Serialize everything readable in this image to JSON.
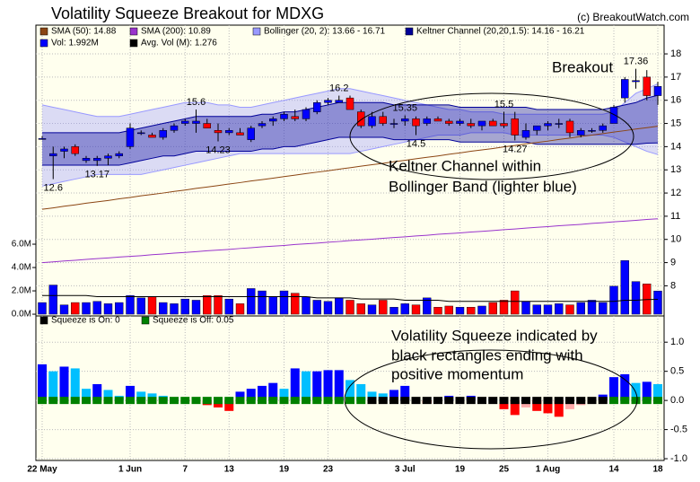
{
  "chart_data": [
    {
      "type": "candlestick",
      "title": "Volatility Squeeze Breakout for MDXG",
      "credit": "(c) BreakoutWatch.com",
      "categories": [
        "22 May",
        null,
        null,
        null,
        null,
        null,
        null,
        null,
        "1 Jun",
        null,
        null,
        null,
        null,
        "7",
        null,
        null,
        null,
        "13",
        null,
        null,
        null,
        null,
        "19",
        null,
        null,
        null,
        "23",
        null,
        null,
        null,
        null,
        null,
        null,
        "3 Jul",
        null,
        null,
        null,
        null,
        "19",
        null,
        null,
        null,
        "25",
        null,
        null,
        null,
        "1 Aug",
        null,
        null,
        null,
        null,
        null,
        "14",
        null,
        null,
        null,
        "18"
      ],
      "open": [
        14.35,
        13.6,
        13.8,
        14.0,
        13.4,
        13.4,
        13.5,
        13.6,
        14.0,
        14.6,
        14.5,
        14.4,
        14.7,
        15.0,
        15.0,
        15.0,
        14.7,
        14.6,
        14.6,
        14.3,
        14.9,
        15.1,
        15.2,
        15.3,
        15.2,
        15.5,
        15.9,
        15.9,
        16.1,
        15.5,
        14.9,
        15.3,
        15.0,
        15.1,
        15.2,
        15.0,
        15.2,
        15.1,
        15.0,
        15.0,
        14.9,
        15.1,
        15.0,
        15.2,
        14.4,
        14.7,
        14.9,
        15.0,
        15.1,
        14.5,
        14.7,
        14.7,
        15.0,
        16.1,
        16.8,
        17.0,
        16.2
      ],
      "high": [
        14.45,
        14.0,
        14.0,
        14.1,
        13.6,
        13.6,
        13.7,
        13.8,
        15.0,
        14.7,
        14.6,
        14.8,
        15.0,
        15.2,
        15.6,
        15.2,
        15.0,
        14.8,
        14.8,
        14.9,
        15.1,
        15.3,
        15.5,
        15.6,
        15.7,
        16.0,
        16.1,
        16.2,
        16.2,
        15.6,
        15.5,
        15.5,
        15.2,
        15.35,
        15.3,
        15.3,
        15.3,
        15.2,
        15.2,
        15.2,
        15.1,
        15.2,
        15.5,
        15.5,
        15.0,
        14.9,
        15.1,
        15.2,
        15.2,
        14.8,
        14.8,
        15.0,
        15.8,
        17.0,
        17.36,
        17.3,
        16.8
      ],
      "low": [
        14.3,
        12.6,
        13.5,
        13.6,
        13.3,
        13.17,
        13.2,
        13.5,
        13.9,
        14.5,
        14.4,
        14.3,
        14.6,
        14.9,
        14.6,
        14.8,
        14.23,
        14.5,
        14.5,
        14.2,
        14.8,
        14.9,
        15.1,
        15.1,
        15.1,
        15.4,
        15.8,
        15.9,
        15.6,
        14.8,
        14.8,
        14.9,
        14.8,
        14.9,
        14.5,
        14.9,
        15.1,
        14.9,
        14.9,
        14.8,
        14.7,
        14.9,
        14.8,
        14.27,
        14.3,
        14.5,
        14.7,
        14.8,
        14.4,
        14.4,
        14.6,
        14.6,
        15.0,
        15.9,
        16.5,
        16.0,
        15.8
      ],
      "close": [
        14.35,
        13.7,
        13.9,
        13.7,
        13.5,
        13.5,
        13.6,
        13.7,
        14.8,
        14.6,
        14.4,
        14.7,
        14.9,
        15.1,
        15.1,
        14.8,
        14.6,
        14.7,
        14.5,
        14.8,
        15.0,
        15.2,
        15.4,
        15.2,
        15.6,
        15.9,
        16.0,
        16.0,
        15.6,
        14.9,
        15.3,
        15.0,
        15.0,
        15.2,
        14.9,
        15.2,
        15.1,
        15.0,
        15.1,
        14.9,
        15.1,
        14.9,
        14.9,
        14.5,
        14.7,
        14.9,
        15.0,
        15.0,
        14.6,
        14.7,
        14.7,
        14.9,
        15.7,
        16.9,
        16.85,
        16.2,
        16.6
      ],
      "high_labels": [
        null,
        null,
        null,
        null,
        null,
        null,
        null,
        null,
        null,
        null,
        null,
        null,
        null,
        null,
        "15.6",
        null,
        null,
        null,
        null,
        null,
        null,
        null,
        null,
        null,
        null,
        null,
        null,
        "16.2",
        null,
        null,
        null,
        null,
        null,
        "15.35",
        null,
        null,
        null,
        null,
        null,
        null,
        null,
        null,
        "15.5",
        null,
        null,
        null,
        null,
        null,
        null,
        null,
        null,
        null,
        null,
        null,
        "17.36",
        null,
        null
      ],
      "low_labels": [
        null,
        "12.6",
        null,
        null,
        null,
        "13.17",
        null,
        null,
        null,
        null,
        null,
        null,
        null,
        null,
        null,
        null,
        "14.23",
        null,
        null,
        null,
        null,
        null,
        null,
        null,
        null,
        null,
        null,
        null,
        null,
        null,
        null,
        null,
        null,
        null,
        "14.5",
        null,
        null,
        null,
        null,
        null,
        null,
        null,
        null,
        "14.27",
        null,
        null,
        null,
        null,
        null,
        null,
        null,
        null,
        null,
        null,
        null,
        null,
        null
      ],
      "up_color": "#0000ff",
      "down_color": "#ff0000",
      "ylim": [
        6.7,
        19.24
      ],
      "yticks": [
        8,
        9,
        10,
        11,
        12,
        13,
        14,
        15,
        16,
        17,
        18
      ],
      "y2lim": [
        -0.15,
        24.77
      ],
      "y2ticks": [
        {
          "value": 0,
          "label": "0.0M"
        },
        {
          "value": 2,
          "label": "2.0M"
        },
        {
          "value": 4,
          "label": "4.0M"
        },
        {
          "value": 6,
          "label": "6.0M"
        }
      ],
      "grid": true,
      "series": [
        {
          "name": "SMA (50): 14.88",
          "color": "#8b4513",
          "values": [
            11.3,
            11.36,
            11.43,
            11.49,
            11.56,
            11.62,
            11.68,
            11.75,
            11.81,
            11.88,
            11.94,
            12.0,
            12.07,
            12.13,
            12.2,
            12.26,
            12.32,
            12.39,
            12.45,
            12.52,
            12.58,
            12.64,
            12.71,
            12.77,
            12.84,
            12.9,
            12.96,
            13.03,
            13.09,
            13.16,
            13.22,
            13.28,
            13.35,
            13.41,
            13.48,
            13.54,
            13.6,
            13.67,
            13.73,
            13.8,
            13.86,
            13.92,
            13.99,
            14.05,
            14.12,
            14.18,
            14.24,
            14.31,
            14.37,
            14.44,
            14.5,
            14.56,
            14.63,
            14.69,
            14.76,
            14.82,
            14.88
          ]
        },
        {
          "name": "SMA (200): 10.89",
          "color": "#9933cc",
          "values": [
            9.0,
            9.03,
            9.07,
            9.1,
            9.14,
            9.17,
            9.2,
            9.24,
            9.27,
            9.3,
            9.34,
            9.37,
            9.41,
            9.44,
            9.47,
            9.51,
            9.54,
            9.57,
            9.61,
            9.64,
            9.68,
            9.71,
            9.74,
            9.78,
            9.81,
            9.84,
            9.88,
            9.91,
            9.95,
            9.98,
            10.01,
            10.05,
            10.08,
            10.11,
            10.15,
            10.18,
            10.22,
            10.25,
            10.28,
            10.32,
            10.35,
            10.38,
            10.42,
            10.45,
            10.49,
            10.52,
            10.55,
            10.59,
            10.62,
            10.65,
            10.69,
            10.72,
            10.76,
            10.79,
            10.82,
            10.86,
            10.89
          ]
        },
        {
          "name": "Bollinger (20, 2): 13.66 - 16.71",
          "color": "#9999ff",
          "upper": [
            15.8,
            15.7,
            15.6,
            15.5,
            15.4,
            15.3,
            15.3,
            15.3,
            15.4,
            15.5,
            15.6,
            15.7,
            15.8,
            15.9,
            15.9,
            15.9,
            15.8,
            15.8,
            15.7,
            15.7,
            15.8,
            15.9,
            16.0,
            16.1,
            16.2,
            16.3,
            16.4,
            16.5,
            16.5,
            16.4,
            16.3,
            16.2,
            16.1,
            16.0,
            15.9,
            15.8,
            15.7,
            15.6,
            15.6,
            15.5,
            15.5,
            15.5,
            15.4,
            15.4,
            15.4,
            15.4,
            15.4,
            15.4,
            15.4,
            15.4,
            15.4,
            15.4,
            15.5,
            15.9,
            16.3,
            16.5,
            16.71
          ],
          "lower": [
            12.3,
            12.4,
            12.5,
            12.6,
            12.7,
            12.8,
            12.8,
            12.8,
            12.8,
            12.8,
            12.9,
            13.0,
            13.1,
            13.2,
            13.3,
            13.4,
            13.5,
            13.6,
            13.7,
            13.7,
            13.7,
            13.7,
            13.7,
            13.7,
            13.7,
            13.7,
            13.7,
            13.7,
            13.7,
            13.8,
            13.9,
            14.0,
            14.1,
            14.2,
            14.3,
            14.4,
            14.5,
            14.5,
            14.5,
            14.6,
            14.6,
            14.6,
            14.6,
            14.5,
            14.5,
            14.5,
            14.5,
            14.5,
            14.5,
            14.5,
            14.5,
            14.5,
            14.4,
            14.2,
            14.0,
            13.8,
            13.66
          ]
        },
        {
          "name": "Keltner Channel (20,20,1.5): 14.16 - 16.21",
          "color": "#000099",
          "upper": [
            14.6,
            14.6,
            14.6,
            14.6,
            14.6,
            14.6,
            14.6,
            14.6,
            14.7,
            14.8,
            14.9,
            15.0,
            15.1,
            15.2,
            15.3,
            15.3,
            15.3,
            15.3,
            15.3,
            15.3,
            15.4,
            15.4,
            15.5,
            15.5,
            15.6,
            15.7,
            15.8,
            15.9,
            15.9,
            15.9,
            15.9,
            15.9,
            15.8,
            15.8,
            15.8,
            15.8,
            15.8,
            15.8,
            15.7,
            15.7,
            15.7,
            15.7,
            15.7,
            15.7,
            15.7,
            15.6,
            15.6,
            15.6,
            15.6,
            15.6,
            15.6,
            15.6,
            15.7,
            15.8,
            15.9,
            16.1,
            16.21
          ],
          "lower": [
            13.2,
            13.2,
            13.2,
            13.2,
            13.2,
            13.2,
            13.2,
            13.2,
            13.3,
            13.4,
            13.5,
            13.6,
            13.6,
            13.7,
            13.8,
            13.8,
            13.8,
            13.8,
            13.8,
            13.8,
            13.9,
            13.9,
            14.0,
            14.0,
            14.1,
            14.2,
            14.3,
            14.4,
            14.4,
            14.4,
            14.4,
            14.4,
            14.3,
            14.3,
            14.3,
            14.3,
            14.3,
            14.3,
            14.2,
            14.2,
            14.2,
            14.2,
            14.2,
            14.2,
            14.2,
            14.1,
            14.1,
            14.1,
            14.1,
            14.1,
            14.1,
            14.1,
            14.1,
            14.1,
            14.1,
            14.15,
            14.16
          ]
        },
        {
          "name": "Vol: 1.992M",
          "color": "#0000ff",
          "axis": "y2",
          "type": "bar",
          "values": [
            1.0,
            2.5,
            0.8,
            1.0,
            1.0,
            1.1,
            0.9,
            1.0,
            1.6,
            1.4,
            1.5,
            1.0,
            0.9,
            1.3,
            1.2,
            1.6,
            1.6,
            1.3,
            0.9,
            2.2,
            2.0,
            1.5,
            2.0,
            1.8,
            1.5,
            1.2,
            1.1,
            1.4,
            1.2,
            0.9,
            0.8,
            1.2,
            0.6,
            0.9,
            0.8,
            1.4,
            0.6,
            0.7,
            0.6,
            0.6,
            0.7,
            1.0,
            1.2,
            2.0,
            1.1,
            0.8,
            0.8,
            0.9,
            0.8,
            1.0,
            1.2,
            1.0,
            2.4,
            4.6,
            2.8,
            2.6,
            1.992
          ]
        },
        {
          "name": "Avg. Vol (M): 1.276",
          "color": "#000000",
          "axis": "y2",
          "values": [
            1.6,
            1.6,
            1.6,
            1.6,
            1.6,
            1.5,
            1.5,
            1.5,
            1.5,
            1.5,
            1.5,
            1.5,
            1.5,
            1.5,
            1.5,
            1.5,
            1.5,
            1.5,
            1.5,
            1.5,
            1.5,
            1.5,
            1.5,
            1.5,
            1.5,
            1.4,
            1.4,
            1.4,
            1.4,
            1.3,
            1.3,
            1.3,
            1.3,
            1.2,
            1.2,
            1.2,
            1.2,
            1.1,
            1.1,
            1.1,
            1.1,
            1.1,
            1.1,
            1.1,
            1.1,
            1.1,
            1.1,
            1.1,
            1.1,
            1.1,
            1.1,
            1.1,
            1.1,
            1.2,
            1.2,
            1.25,
            1.276
          ]
        }
      ],
      "annotations": [
        "Breakout",
        "Keltner Channel within",
        "Bollinger Band (lighter blue)"
      ]
    },
    {
      "type": "bar",
      "values": [
        0.62,
        0.5,
        0.58,
        0.55,
        0.2,
        0.28,
        0.18,
        0.08,
        0.25,
        0.15,
        0.12,
        0.08,
        0.05,
        -0.02,
        -0.05,
        -0.08,
        -0.12,
        -0.18,
        0.15,
        0.2,
        0.25,
        0.3,
        0.2,
        0.55,
        0.5,
        0.5,
        0.52,
        0.52,
        0.35,
        0.28,
        0.15,
        0.12,
        0.18,
        0.25,
        0.05,
        -0.05,
        0.05,
        0.08,
        0.05,
        0.08,
        0.05,
        0.02,
        -0.15,
        -0.25,
        -0.12,
        -0.18,
        -0.22,
        -0.28,
        -0.15,
        -0.08,
        -0.05,
        0.1,
        0.4,
        0.45,
        0.3,
        0.32,
        0.28
      ],
      "squeeze_on": [
        false,
        false,
        false,
        false,
        false,
        false,
        false,
        false,
        false,
        false,
        false,
        false,
        false,
        false,
        false,
        false,
        false,
        false,
        false,
        false,
        false,
        false,
        false,
        false,
        false,
        false,
        false,
        false,
        false,
        false,
        true,
        true,
        true,
        true,
        true,
        true,
        true,
        true,
        true,
        true,
        true,
        true,
        true,
        true,
        true,
        true,
        true,
        true,
        true,
        true,
        true,
        true,
        false,
        false,
        false,
        false,
        false
      ],
      "on_color": "#000000",
      "off_color": "#008000",
      "colors": {
        "up_rising": "#0000ff",
        "up_falling": "#00bfff",
        "down_falling": "#ff0000",
        "down_rising": "#ffaaaa"
      },
      "legend": [
        {
          "name": "Squeeze is On: 0",
          "color": "#000000"
        },
        {
          "name": "Squeeze is Off: 0.05",
          "color": "#008000"
        }
      ],
      "ylim": [
        -1.03,
        1.45
      ],
      "yticks": [
        {
          "value": 1,
          "label": "1.0"
        },
        0.5,
        {
          "value": 0,
          "label": "0.0"
        },
        -0.5,
        {
          "value": -1,
          "label": "-1.0"
        }
      ],
      "grid": true,
      "annotations": [
        "Volatility Squeeze indicated by",
        "black rectangles ending with",
        "positive momentum"
      ]
    }
  ]
}
